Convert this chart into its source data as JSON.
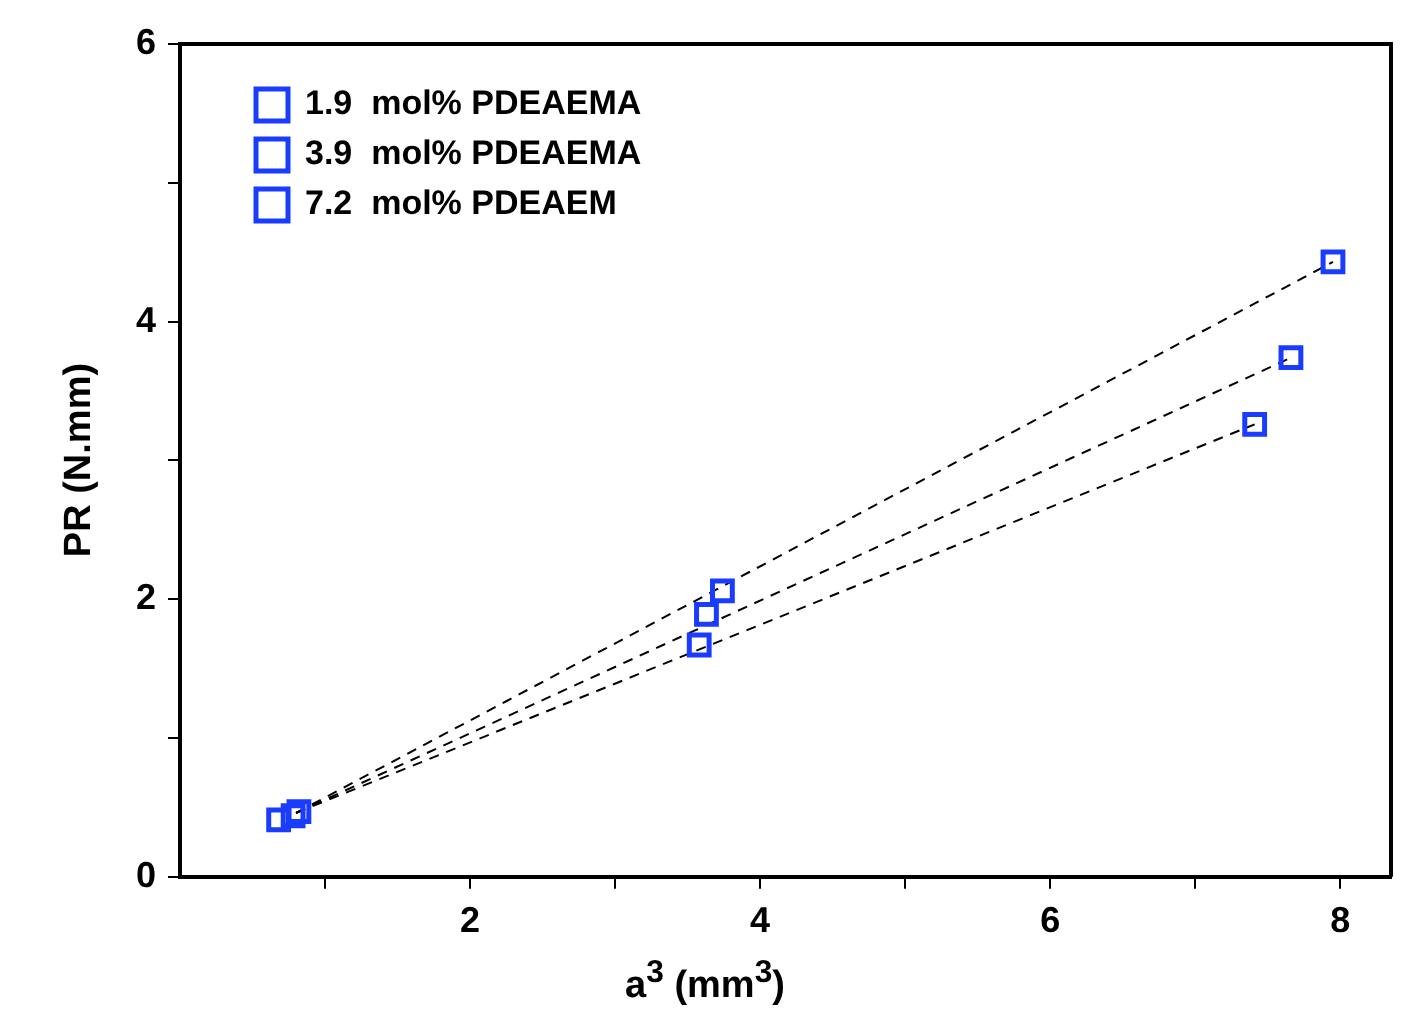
{
  "chart_data": {
    "type": "scatter",
    "xlabel": "a$^{3}$ (mm$^{3}$)",
    "ylabel": "PR (N.mm)",
    "xlim": [
      0,
      8.35
    ],
    "xticks": [
      {
        "value": 1,
        "label": null
      },
      2,
      {
        "value": 3,
        "label": null
      },
      4,
      {
        "value": 5,
        "label": null
      },
      6,
      {
        "value": 7,
        "label": null
      },
      8
    ],
    "ylim": [
      0,
      6
    ],
    "yticks": [
      0,
      {
        "value": 1,
        "label": null
      },
      2,
      {
        "value": 3,
        "label": null
      },
      4,
      {
        "value": 5,
        "label": null
      },
      6
    ],
    "grid": false,
    "legend": "top left",
    "marker": "square",
    "series": [
      {
        "name": "1.9  mol% PDEAEMA",
        "color": "#1a3cff",
        "x": [
          0.68,
          3.58,
          7.41
        ],
        "values": [
          0.41,
          1.67,
          3.26
        ]
      },
      {
        "name": "3.9  mol% PDEAEMA",
        "color": "#1a3cff",
        "x": [
          0.78,
          3.63,
          7.66
        ],
        "values": [
          0.44,
          1.89,
          3.74
        ]
      },
      {
        "name": "7.2  mol% PDEAEM",
        "color": "#1a3cff",
        "x": [
          0.82,
          3.74,
          7.95
        ],
        "values": [
          0.47,
          2.06,
          4.43
        ]
      },
      {
        "type": "line",
        "marker": "none",
        "color": "#000000",
        "line_style": "dashed",
        "x": [
          0.8,
          7.41
        ],
        "values": [
          0.46,
          3.26
        ]
      },
      {
        "type": "line",
        "marker": "none",
        "color": "#000000",
        "line_style": "dashed",
        "x": [
          0.8,
          7.66
        ],
        "values": [
          0.46,
          3.74
        ]
      },
      {
        "type": "line",
        "marker": "none",
        "color": "#000000",
        "line_style": "dashed",
        "x": [
          0.8,
          7.95
        ],
        "values": [
          0.46,
          4.43
        ]
      }
    ]
  }
}
